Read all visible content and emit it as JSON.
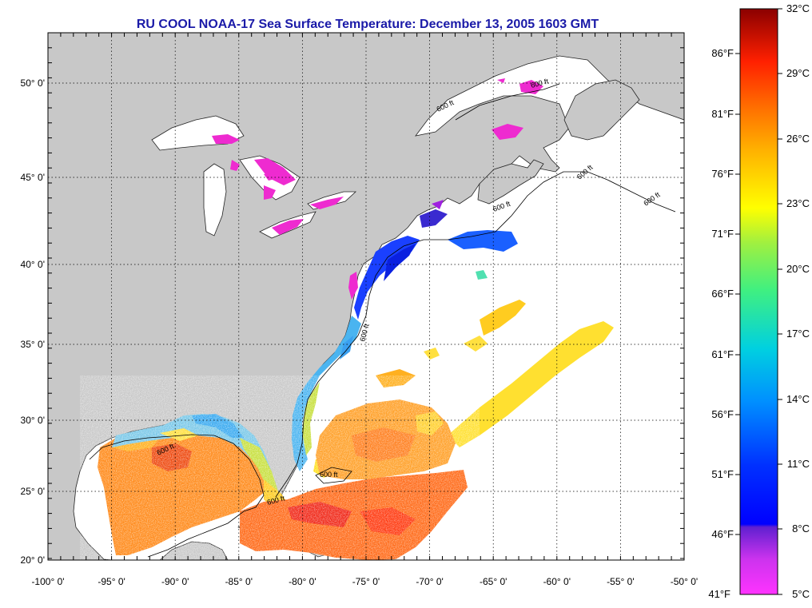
{
  "title": "RU COOL  NOAA-17  Sea Surface Temperature:  December 13, 2005 1603 GMT",
  "map": {
    "lat_labels": [
      "50° 0'",
      "45° 0'",
      "40° 0'",
      "35° 0'",
      "30° 0'",
      "25° 0'",
      "20° 0'"
    ],
    "lon_labels": [
      "-100° 0'",
      "-95° 0'",
      "-90° 0'",
      "-85° 0'",
      "-80° 0'",
      "-75° 0'",
      "-70° 0'",
      "-65° 0'",
      "-60° 0'",
      "-55° 0'",
      "-50° 0'"
    ],
    "isobath_label": "600 ft",
    "land_color": "#c8c8c8",
    "ocean_color": "#ffffff",
    "grid": true
  },
  "colorbar": {
    "celsius_labels": [
      "32°C",
      "29°C",
      "26°C",
      "23°C",
      "20°C",
      "17°C",
      "14°C",
      "11°C",
      "8°C",
      "5°C"
    ],
    "fahrenheit_labels": [
      "86°F",
      "81°F",
      "76°F",
      "71°F",
      "66°F",
      "61°F",
      "56°F",
      "51°F",
      "46°F",
      "41°F"
    ],
    "colors": [
      "#8b0000",
      "#ff2000",
      "#ff8000",
      "#ffff00",
      "#80ff00",
      "#00ffa0",
      "#00c0ff",
      "#0060ff",
      "#0000ff",
      "#8000c0",
      "#ff00ff"
    ]
  }
}
